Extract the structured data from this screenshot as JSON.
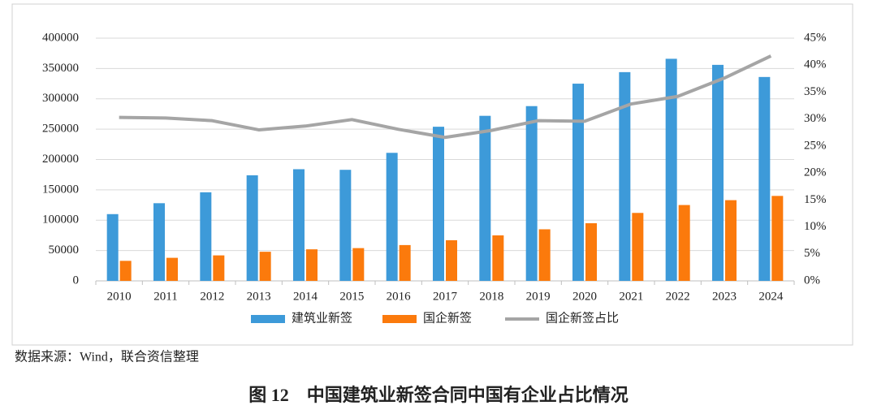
{
  "chart_data": {
    "type": "bar_line",
    "categories": [
      "2010",
      "2011",
      "2012",
      "2013",
      "2014",
      "2015",
      "2016",
      "2017",
      "2018",
      "2019",
      "2020",
      "2021",
      "2022",
      "2023",
      "2024"
    ],
    "series": [
      {
        "name": "建筑业新签",
        "color": "#3d9ad9",
        "type": "bar",
        "values": [
          110000,
          128000,
          146000,
          174000,
          184000,
          183000,
          211000,
          254000,
          272000,
          288000,
          325000,
          344000,
          366000,
          356000,
          336000
        ]
      },
      {
        "name": "国企新签",
        "color": "#fb7a0c",
        "type": "bar",
        "values": [
          33000,
          38000,
          42000,
          48000,
          52000,
          54000,
          59000,
          67000,
          75000,
          85000,
          95000,
          112000,
          125000,
          133000,
          140000
        ]
      },
      {
        "name": "国企新签占比",
        "color": "#a5a5a5",
        "type": "line",
        "axis": "y2",
        "values": [
          30.3,
          30.2,
          29.7,
          28.0,
          28.7,
          29.9,
          28.1,
          26.6,
          27.9,
          29.7,
          29.6,
          32.8,
          34.2,
          37.6,
          41.7
        ]
      }
    ],
    "ylim": [
      0,
      400000
    ],
    "yticks": [
      0,
      50000,
      100000,
      150000,
      200000,
      250000,
      300000,
      350000,
      400000
    ],
    "y2lim": [
      0,
      45
    ],
    "y2ticks": [
      {
        "value": 0,
        "label": "0%"
      },
      {
        "value": 5,
        "label": "5%"
      },
      {
        "value": 10,
        "label": "10%"
      },
      {
        "value": 15,
        "label": "15%"
      },
      {
        "value": 20,
        "label": "20%"
      },
      {
        "value": 25,
        "label": "25%"
      },
      {
        "value": 30,
        "label": "30%"
      },
      {
        "value": 35,
        "label": "35%"
      },
      {
        "value": 40,
        "label": "40%"
      },
      {
        "value": 45,
        "label": "45%"
      }
    ],
    "grid": true,
    "legend": "bottom"
  },
  "source": "数据来源：Wind，联合资信整理",
  "caption": "图 12　中国建筑业新签合同中国有企业占比情况"
}
